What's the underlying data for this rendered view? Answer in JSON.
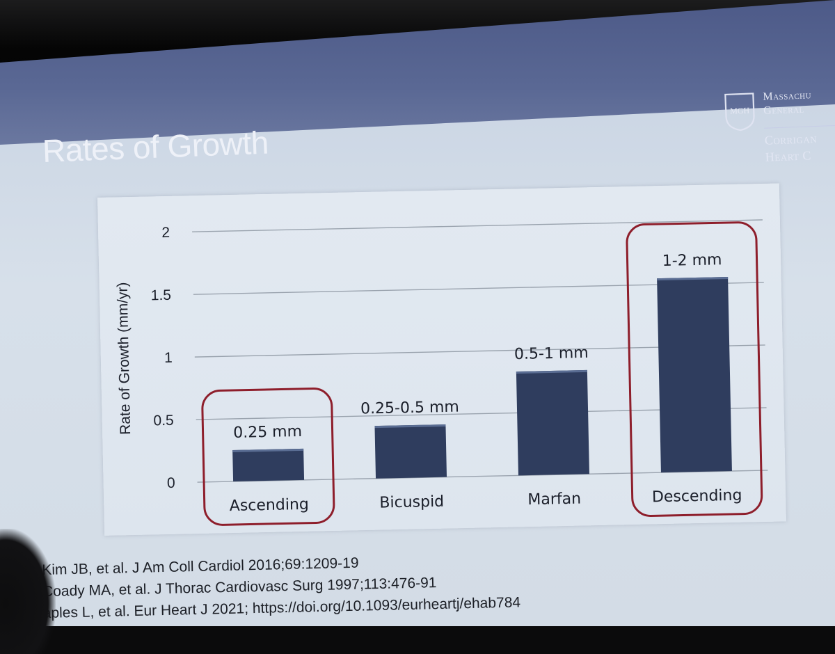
{
  "slide": {
    "title": "Rates of Growth",
    "logo": {
      "line1": "Massachu",
      "line2": "General",
      "line3": "Corrigan",
      "line4": "Heart C",
      "shield_text": "MGH"
    },
    "references": [
      "Kim JB, et al. J Am Coll Cardiol 2016;69:1209-19",
      "Coady MA, et al. J Thorac Cardiovasc Surg 1997;113:476-91",
      "aples L, et al. Eur Heart J 2021; https://doi.org/10.1093/eurheartj/ehab784"
    ]
  },
  "chart_data": {
    "type": "bar",
    "categories": [
      "Ascending",
      "Bicuspid",
      "Marfan",
      "Descending"
    ],
    "values": [
      0.25,
      0.42,
      0.83,
      1.55
    ],
    "data_labels": [
      "0.25 mm",
      "0.25-0.5 mm",
      "0.5-1 mm",
      "1-2 mm"
    ],
    "highlighted": [
      "Ascending",
      "Descending"
    ],
    "title": "",
    "xlabel": "",
    "ylabel": "Rate of Growth (mm/yr)",
    "ylim": [
      0,
      2
    ],
    "yticks": [
      "0",
      "0.5",
      "1",
      "1.5",
      "2"
    ],
    "grid": true,
    "colors": {
      "bar": "#2f3d5e",
      "bar_top": "#5a6d93",
      "highlight": "#8e1e2b",
      "grid": "#9aa3ae"
    }
  }
}
